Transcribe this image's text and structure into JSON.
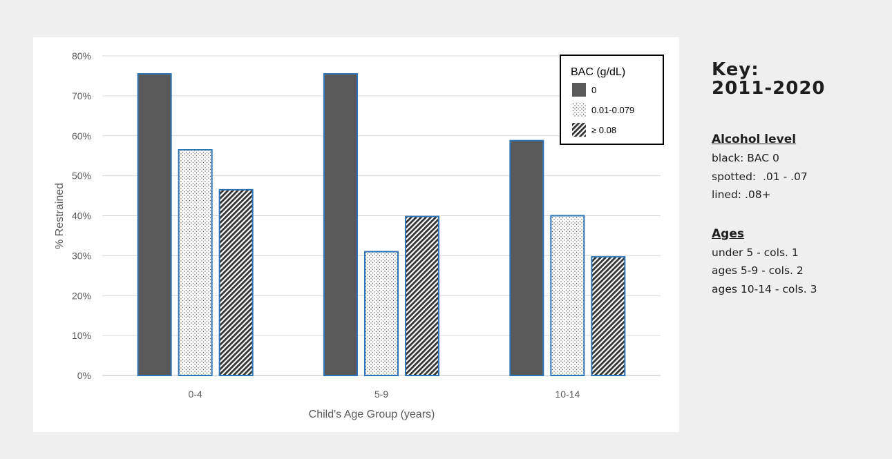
{
  "chart_data": {
    "type": "bar",
    "categories": [
      "0-4",
      "5-9",
      "10-14"
    ],
    "series": [
      {
        "name": "0",
        "pattern": "solid",
        "values": [
          75.5,
          75.5,
          58.8
        ]
      },
      {
        "name": "0.01-0.079",
        "pattern": "dotted",
        "values": [
          56.5,
          31.0,
          40.0
        ]
      },
      {
        "name": "≥ 0.08",
        "pattern": "hatched",
        "values": [
          46.5,
          39.8,
          29.7
        ]
      }
    ],
    "y_ticks": [
      "0%",
      "10%",
      "20%",
      "30%",
      "40%",
      "50%",
      "60%",
      "70%",
      "80%"
    ],
    "ylim": [
      0,
      80
    ],
    "xlabel": "Child's Age Group (years)",
    "ylabel": "% Restrained",
    "legend_title": "BAC (g/dL)",
    "legend_position": "top-right",
    "grid": true,
    "colors": {
      "bar_fill": "#595959",
      "bar_stroke": "#2e75b6",
      "grid": "#d9d9d9",
      "axis": "#bfbfbf"
    }
  },
  "key": {
    "title_line1": "Key:",
    "title_line2": "2011-2020",
    "alcohol": {
      "title": "Alcohol level",
      "lines": [
        "black: BAC 0",
        "spotted:  .01 - .07",
        "lined: .08+"
      ]
    },
    "ages": {
      "title": "Ages",
      "lines": [
        "under 5 - cols. 1",
        "ages 5-9 - cols. 2",
        "ages 10-14 - cols. 3"
      ]
    }
  }
}
